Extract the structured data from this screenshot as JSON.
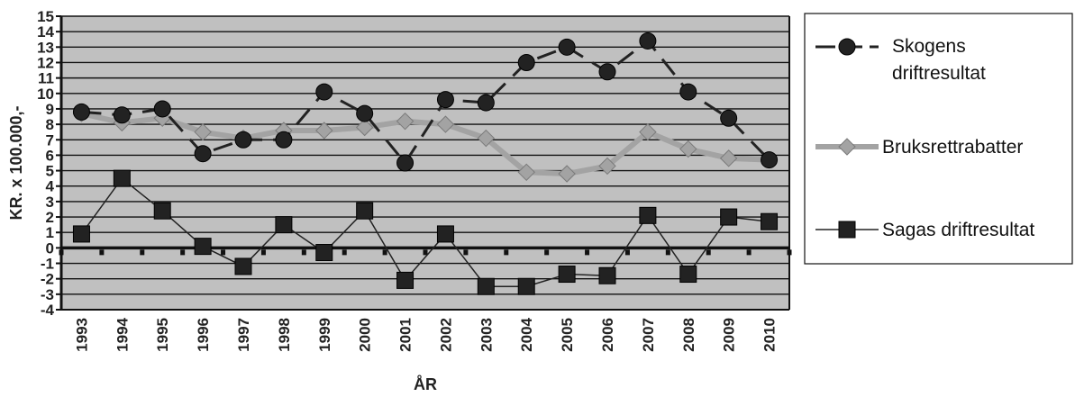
{
  "chart_data": {
    "type": "line",
    "xlabel": "ÅR",
    "ylabel": "KR. x 100.000,-",
    "ylim": [
      -4,
      15
    ],
    "yticks": [
      -4,
      -3,
      -2,
      -1,
      0,
      1,
      2,
      3,
      4,
      5,
      6,
      7,
      8,
      9,
      10,
      11,
      12,
      13,
      14,
      15
    ],
    "categories": [
      "1993",
      "1994",
      "1995",
      "1996",
      "1997",
      "1998",
      "1999",
      "2000",
      "2001",
      "2002",
      "2003",
      "2004",
      "2005",
      "2006",
      "2007",
      "2008",
      "2009",
      "2010"
    ],
    "grid": true,
    "legend_position": "right",
    "colors": {
      "plot_background": "#c0c0c0",
      "grid": "#111111",
      "skogens": "#222222",
      "bruks": "#a3a3a3",
      "sagas": "#222222"
    },
    "series": [
      {
        "key": "skogens",
        "name_lines": [
          "Skogens",
          "driftresultat"
        ],
        "marker": "circle",
        "line_style": "dashed",
        "values": [
          8.8,
          8.6,
          9.0,
          6.1,
          7.0,
          7.0,
          10.1,
          8.7,
          5.5,
          9.6,
          9.4,
          12.0,
          13.0,
          11.4,
          13.4,
          10.1,
          8.4,
          5.7
        ]
      },
      {
        "key": "bruks",
        "name_lines": [
          "Bruksrettrabatter"
        ],
        "marker": "diamond",
        "line_style": "solid",
        "values": [
          8.7,
          8.1,
          8.4,
          7.5,
          7.1,
          7.6,
          7.6,
          7.8,
          8.2,
          8.0,
          7.1,
          4.9,
          4.8,
          5.3,
          7.5,
          6.4,
          5.8,
          5.7
        ]
      },
      {
        "key": "sagas",
        "name_lines": [
          "Sagas driftresultat"
        ],
        "marker": "square",
        "line_style": "solid",
        "values": [
          0.9,
          4.5,
          2.4,
          0.1,
          -1.2,
          1.5,
          -0.3,
          2.4,
          -2.1,
          0.9,
          -2.5,
          -2.5,
          -1.7,
          -1.8,
          2.1,
          -1.7,
          2.0,
          1.7
        ]
      }
    ]
  }
}
